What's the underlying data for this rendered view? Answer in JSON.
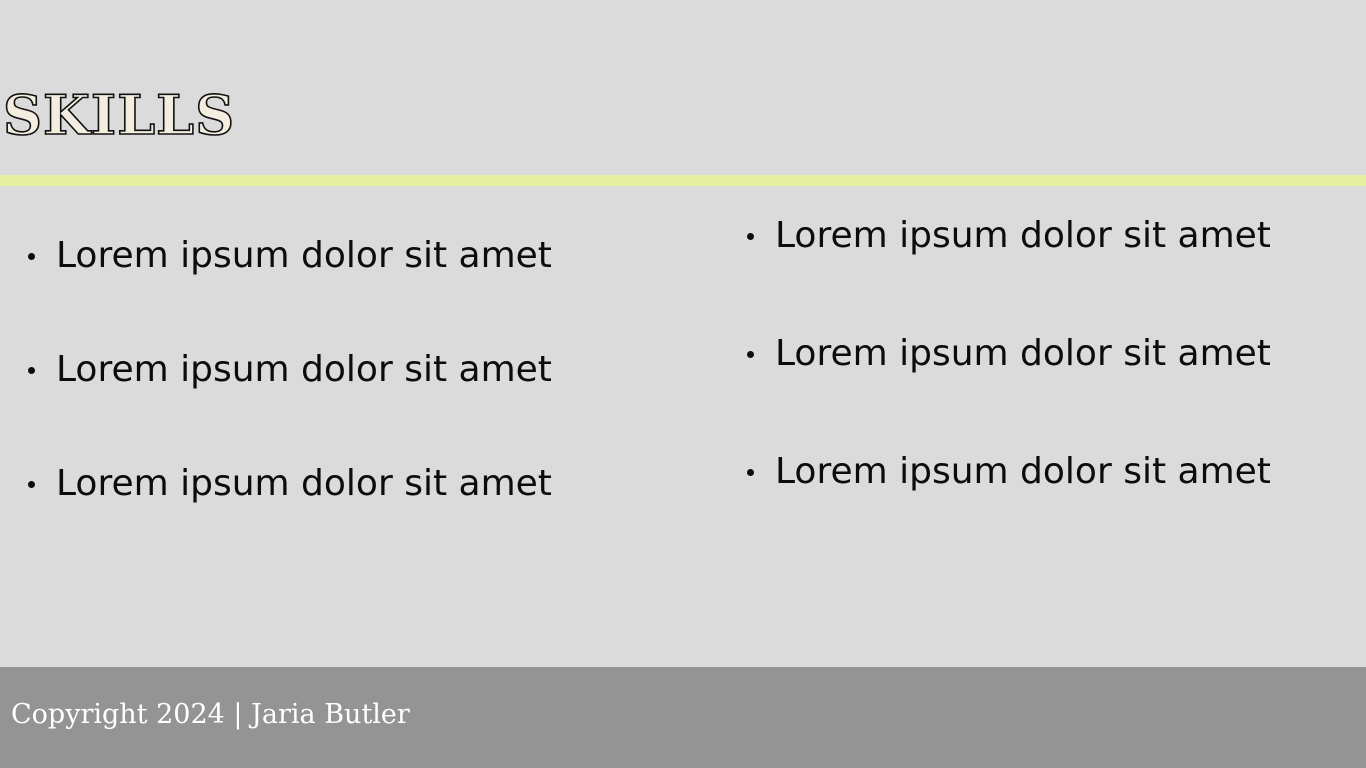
{
  "page": {
    "title": "SKILLS"
  },
  "skills": {
    "left": [
      "Lorem ipsum dolor sit amet",
      "Lorem ipsum dolor sit amet",
      "Lorem ipsum dolor sit amet"
    ],
    "right": [
      "Lorem ipsum dolor sit amet",
      "Lorem ipsum dolor sit amet",
      "Lorem ipsum dolor sit amet"
    ]
  },
  "footer": {
    "copyright": "Copyright 2024 | Jaria Butler"
  },
  "colors": {
    "background": "#dbdbdb",
    "accent_divider": "#e5f1a0",
    "footer_background": "#949494",
    "title_fill": "#f3eedf",
    "text": "#0c0c0c"
  }
}
